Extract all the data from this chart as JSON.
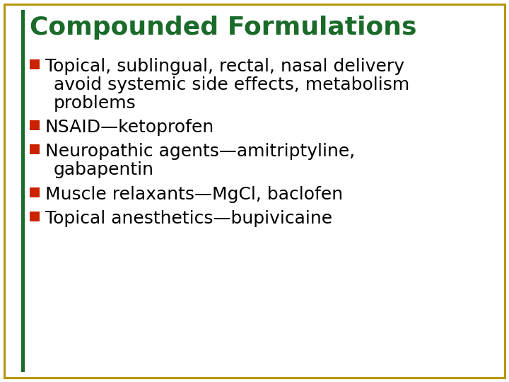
{
  "title": "Compounded Formulations",
  "title_color": "#1a6b2a",
  "title_fontsize": 26,
  "background_color": "#ffffff",
  "border_color": "#b8960a",
  "left_bar_color": "#1a6b2a",
  "bullet_color": "#cc2200",
  "text_color": "#000000",
  "bullet_items": [
    {
      "lines": [
        "Topical, sublingual, rectal, nasal delivery",
        "avoid systemic side effects, metabolism",
        "problems"
      ]
    },
    {
      "lines": [
        "NSAID—ketoprofen"
      ]
    },
    {
      "lines": [
        "Neuropathic agents—amitriptyline,",
        "gabapentin"
      ]
    },
    {
      "lines": [
        "Muscle relaxants—MgCl, baclofen"
      ]
    },
    {
      "lines": [
        "Topical anesthetics—bupivicaine"
      ]
    }
  ],
  "bullet_fontsize": 18,
  "figwidth": 7.2,
  "figheight": 5.4,
  "dpi": 100
}
